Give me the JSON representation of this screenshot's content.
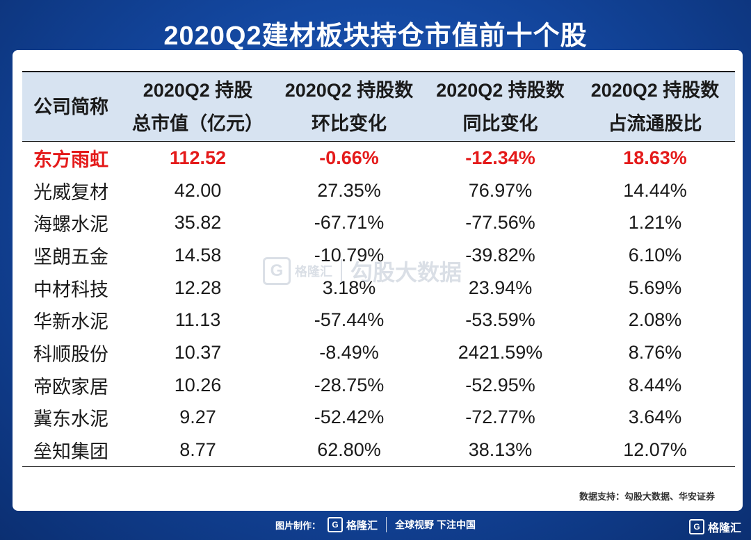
{
  "title": "2020Q2建材板块持仓市值前十个股",
  "table": {
    "headers": [
      {
        "line1": "公司简称",
        "line2": ""
      },
      {
        "line1": "2020Q2 持股",
        "line2": "总市值（亿元）"
      },
      {
        "line1": "2020Q2 持股数",
        "line2": "环比变化"
      },
      {
        "line1": "2020Q2 持股数",
        "line2": "同比变化"
      },
      {
        "line1": "2020Q2 持股数",
        "line2": "占流通股比"
      }
    ],
    "rows": [
      [
        "东方雨虹",
        "112.52",
        "-0.66%",
        "-12.34%",
        "18.63%"
      ],
      [
        "光威复材",
        "42.00",
        "27.35%",
        "76.97%",
        "14.44%"
      ],
      [
        "海螺水泥",
        "35.82",
        "-67.71%",
        "-77.56%",
        "1.21%"
      ],
      [
        "坚朗五金",
        "14.58",
        "-10.79%",
        "-39.82%",
        "6.10%"
      ],
      [
        "中材科技",
        "12.28",
        "3.18%",
        "23.94%",
        "5.69%"
      ],
      [
        "华新水泥",
        "11.13",
        "-57.44%",
        "-53.59%",
        "2.08%"
      ],
      [
        "科顺股份",
        "10.37",
        "-8.49%",
        "2421.59%",
        "8.76%"
      ],
      [
        "帝欧家居",
        "10.26",
        "-28.75%",
        "-52.95%",
        "8.44%"
      ],
      [
        "冀东水泥",
        "9.27",
        "-52.42%",
        "-72.77%",
        "3.64%"
      ],
      [
        "垒知集团",
        "8.77",
        "62.80%",
        "38.13%",
        "12.07%"
      ]
    ],
    "highlight_color": "#e41a1a"
  },
  "watermark": {
    "logo_letter": "G",
    "brand": "格隆汇",
    "text": "勾股大数据",
    "icon": "brand-logo-icon"
  },
  "source": "数据支持：勾股大数据、华安证券",
  "footer": {
    "credit": "图片制作：",
    "logo_letter": "G",
    "brand": "格隆汇",
    "slogan": "全球视野 下注中国"
  },
  "corner_logo": {
    "logo_letter": "G",
    "brand": "格隆汇"
  },
  "colors": {
    "background": "#12449a",
    "header_row": "#d7e3f1",
    "highlight": "#e41a1a"
  }
}
